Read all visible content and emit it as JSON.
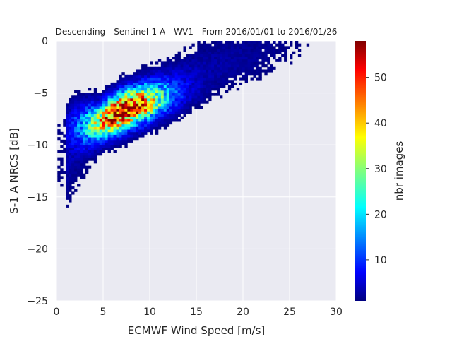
{
  "chart_data": {
    "type": "heatmap",
    "title": "Descending - Sentinel-1 A - WV1 - From 2016/01/01 to 2016/01/26",
    "xlabel": "ECMWF Wind Speed [m/s]",
    "ylabel": "S-1 A NRCS [dB]",
    "xlim": [
      0,
      30
    ],
    "ylim": [
      -25,
      0
    ],
    "x_ticks": [
      0,
      5,
      10,
      15,
      20,
      25,
      30
    ],
    "x_tick_labels": [
      "0",
      "5",
      "10",
      "15",
      "20",
      "25",
      "30"
    ],
    "y_ticks": [
      0,
      -5,
      -10,
      -15,
      -20,
      -25
    ],
    "y_tick_labels": [
      "0",
      "−5",
      "−10",
      "−15",
      "−20",
      "−25"
    ],
    "grid": true,
    "colorbar": {
      "label": "nbr images",
      "range": [
        1,
        58
      ],
      "ticks": [
        10,
        20,
        30,
        40,
        50
      ],
      "tick_labels": [
        "10",
        "20",
        "30",
        "40",
        "50"
      ],
      "colormap": "jet"
    },
    "density_model": {
      "description_of_ridge": "counts concentrated along an increasing curve",
      "ridge_points": [
        {
          "x": 0.5,
          "y": -13.0
        },
        {
          "x": 2.0,
          "y": -10.5
        },
        {
          "x": 4.0,
          "y": -9.0
        },
        {
          "x": 6.0,
          "y": -7.5
        },
        {
          "x": 8.0,
          "y": -6.2
        },
        {
          "x": 10.0,
          "y": -5.2
        },
        {
          "x": 12.0,
          "y": -4.2
        },
        {
          "x": 14.0,
          "y": -3.3
        },
        {
          "x": 17.0,
          "y": -2.3
        },
        {
          "x": 20.0,
          "y": -1.6
        },
        {
          "x": 25.0,
          "y": -0.7
        },
        {
          "x": 28.5,
          "y": -0.3
        }
      ],
      "peak": {
        "x": 7.0,
        "y": -6.8,
        "value": 58
      }
    }
  },
  "colors": {
    "plot_background": "#eaeaf2",
    "grid": "#ffffff"
  }
}
